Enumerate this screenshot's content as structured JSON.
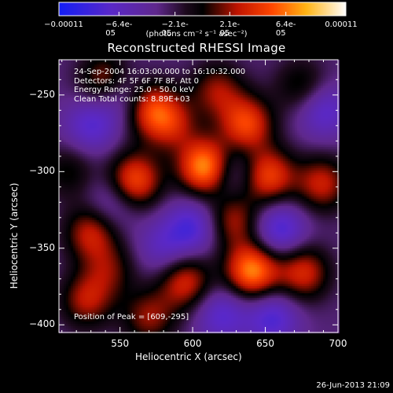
{
  "chart_data": {
    "type": "heatmap",
    "title": "Reconstructed RHESSI Image",
    "xlabel": "Heliocentric X (arcsec)",
    "ylabel": "Heliocentric Y (arcsec)",
    "xlim": [
      508,
      700
    ],
    "ylim": [
      -405,
      -227
    ],
    "x_ticks": [
      550,
      600,
      650,
      700
    ],
    "y_ticks": [
      -250,
      -300,
      -350,
      -400
    ],
    "colorbar": {
      "min": -0.00011,
      "max": 0.00011,
      "tick_labels": [
        "-0.00011",
        "-6.4e-05",
        "-2.1e-05",
        "2.1e-05",
        "6.4e-05",
        "0.00011"
      ],
      "tick_values": [
        -0.00011,
        -6.4e-05,
        -2.1e-05,
        2.1e-05,
        6.4e-05,
        0.00011
      ],
      "units": "(photons cm⁻² s⁻¹ asec⁻²)"
    },
    "annotations": {
      "time": "24-Sep-2004 16:03:00.000 to 16:10:32.000",
      "detectors": "Detectors: 4F 5F 6F 7F 8F, Att 0",
      "energy": "Energy Range: 25.0 - 50.0 keV",
      "clean": "Clean     Total counts: 8.89E+03",
      "peak": "Position of Peak = [609,-295]"
    },
    "peak": {
      "x": 609,
      "y": -295,
      "value": 0.00011
    },
    "sources": [
      {
        "x": 609,
        "y": -297,
        "amp": 1.0
      },
      {
        "x": 560,
        "y": -306,
        "amp": 0.75
      },
      {
        "x": 567,
        "y": -257,
        "amp": 0.7
      },
      {
        "x": 584,
        "y": -268,
        "amp": 0.55
      },
      {
        "x": 637,
        "y": -269,
        "amp": 0.7
      },
      {
        "x": 652,
        "y": -303,
        "amp": 0.7
      },
      {
        "x": 641,
        "y": -365,
        "amp": 0.9
      },
      {
        "x": 676,
        "y": -366,
        "amp": 0.6
      },
      {
        "x": 689,
        "y": -308,
        "amp": 0.55
      },
      {
        "x": 530,
        "y": -340,
        "amp": 0.55
      },
      {
        "x": 595,
        "y": -372,
        "amp": 0.6
      },
      {
        "x": 527,
        "y": -384,
        "amp": 0.5
      },
      {
        "x": 540,
        "y": -240,
        "amp": 0.5
      },
      {
        "x": 617,
        "y": -247,
        "amp": 0.45
      },
      {
        "x": 570,
        "y": -395,
        "amp": 0.45
      },
      {
        "x": 628,
        "y": -332,
        "amp": 0.5
      },
      {
        "x": 675,
        "y": -244,
        "amp": 0.35
      },
      {
        "x": 543,
        "y": -364,
        "amp": 0.35
      },
      {
        "x": 515,
        "y": -300,
        "amp": 0.3
      },
      {
        "x": 555,
        "y": -252,
        "amp": -0.5
      },
      {
        "x": 626,
        "y": -300,
        "amp": -0.35
      },
      {
        "x": 600,
        "y": -336,
        "amp": -0.45
      },
      {
        "x": 660,
        "y": -338,
        "amp": -0.5
      },
      {
        "x": 530,
        "y": -270,
        "amp": -0.4
      },
      {
        "x": 655,
        "y": -395,
        "amp": -0.45
      },
      {
        "x": 690,
        "y": -260,
        "amp": -0.4
      },
      {
        "x": 620,
        "y": -393,
        "amp": -0.4
      },
      {
        "x": 545,
        "y": -320,
        "amp": -0.3
      },
      {
        "x": 580,
        "y": -350,
        "amp": -0.3
      }
    ]
  },
  "footer": {
    "timestamp": "26-Jun-2013 21:09"
  }
}
